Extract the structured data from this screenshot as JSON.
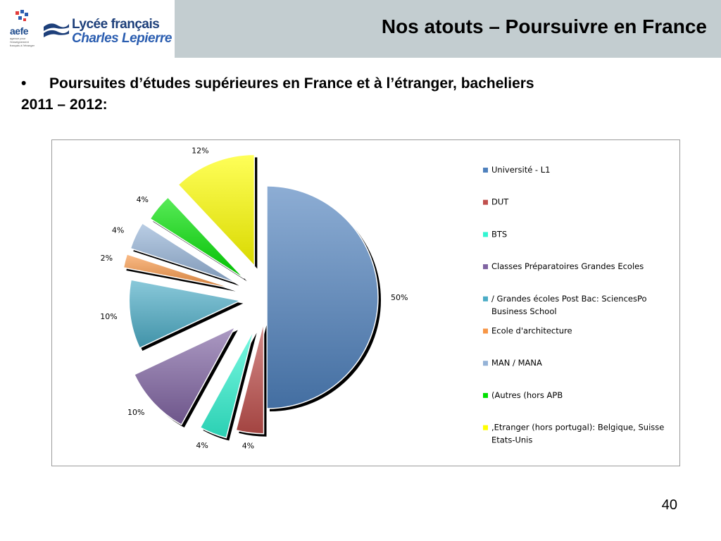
{
  "header": {
    "title": "Nos atouts – Poursuivre en France",
    "logo_aefe": "aefe",
    "logo_aefe_tagline": "agence pour l'enseignement français à l'étranger",
    "logo_lycee_line1": "Lycée français",
    "logo_lycee_line2": "Charles Lepierre"
  },
  "bullet": {
    "symbol": "•",
    "line1": "Poursuites d’études supérieures en France et à l’étranger, bacheliers",
    "line2": "2011 – 2012:"
  },
  "chart_data": {
    "type": "pie",
    "title": "",
    "legend_position": "right",
    "slices": [
      {
        "label": "Université - L1",
        "value": 50,
        "display": "50%",
        "color": "#4f81bd"
      },
      {
        "label": "DUT",
        "value": 4,
        "display": "4%",
        "color": "#c0504d"
      },
      {
        "label": "BTS",
        "value": 4,
        "display": "4%",
        "color": "#33f5d2"
      },
      {
        "label": "Classes Préparatoires Grandes Ecoles",
        "value": 10,
        "display": "10%",
        "color": "#8064a2"
      },
      {
        "label": "/ Grandes écoles Post Bac: SciencesPo Business School",
        "label_lines": [
          "/ Grandes écoles Post Bac: SciencesPo",
          "Business School"
        ],
        "value": 10,
        "display": "10%",
        "color": "#4bacc6"
      },
      {
        "label": "Ecole d'architecture",
        "value": 2,
        "display": "2%",
        "color": "#f79646"
      },
      {
        "label": "MAN / MANA",
        "value": 4,
        "display": "4%",
        "color": "#95b3d7"
      },
      {
        "label": "(Autres (hors APB",
        "value": 4,
        "display": "4%",
        "color": "#00e000"
      },
      {
        "label": ",Etranger (hors portugal): Belgique, Suisse Etats-Unis",
        "label_lines": [
          ",Etranger (hors portugal): Belgique, Suisse",
          "Etats-Unis"
        ],
        "value": 12,
        "display": "12%",
        "color": "#ffff00"
      }
    ]
  },
  "footer": {
    "page_number": "40"
  }
}
